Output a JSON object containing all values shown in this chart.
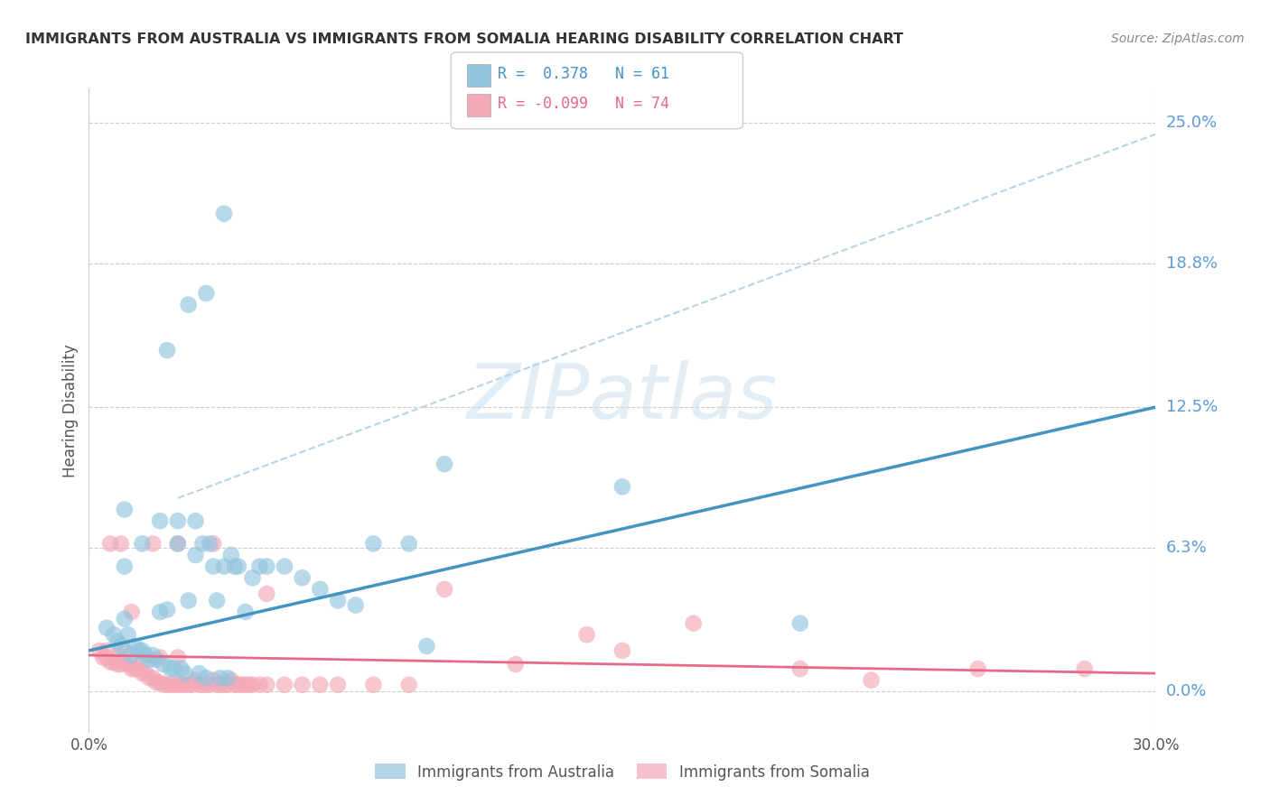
{
  "title": "IMMIGRANTS FROM AUSTRALIA VS IMMIGRANTS FROM SOMALIA HEARING DISABILITY CORRELATION CHART",
  "source": "Source: ZipAtlas.com",
  "ylabel": "Hearing Disability",
  "xlim": [
    0.0,
    0.3
  ],
  "ylim": [
    -0.018,
    0.265
  ],
  "ytick_values": [
    0.0,
    0.063,
    0.125,
    0.188,
    0.25
  ],
  "ytick_labels": [
    "0.0%",
    "6.3%",
    "12.5%",
    "18.8%",
    "25.0%"
  ],
  "xtick_values": [
    0.0,
    0.3
  ],
  "xtick_labels": [
    "0.0%",
    "30.0%"
  ],
  "australia_color": "#92c5de",
  "somalia_color": "#f4a9b8",
  "australia_line_color": "#4393c3",
  "somalia_line_color": "#e8688a",
  "dashed_line_color": "#b8d4e8",
  "R_australia": 0.378,
  "N_australia": 61,
  "R_somalia": -0.099,
  "N_somalia": 74,
  "watermark_text": "ZIPatlas",
  "watermark_color": "#c8dced",
  "aus_x": [
    0.005,
    0.007,
    0.008,
    0.009,
    0.01,
    0.01,
    0.01,
    0.011,
    0.012,
    0.013,
    0.014,
    0.015,
    0.015,
    0.016,
    0.017,
    0.018,
    0.019,
    0.02,
    0.02,
    0.021,
    0.022,
    0.023,
    0.024,
    0.025,
    0.025,
    0.026,
    0.027,
    0.028,
    0.03,
    0.03,
    0.031,
    0.032,
    0.033,
    0.034,
    0.035,
    0.036,
    0.037,
    0.038,
    0.039,
    0.04,
    0.041,
    0.042,
    0.044,
    0.046,
    0.048,
    0.05,
    0.055,
    0.06,
    0.065,
    0.07,
    0.075,
    0.08,
    0.09,
    0.095,
    0.1,
    0.15,
    0.2,
    0.022,
    0.028,
    0.033,
    0.038
  ],
  "aus_y": [
    0.028,
    0.025,
    0.022,
    0.02,
    0.055,
    0.08,
    0.032,
    0.025,
    0.016,
    0.02,
    0.018,
    0.018,
    0.065,
    0.016,
    0.014,
    0.016,
    0.014,
    0.075,
    0.035,
    0.012,
    0.036,
    0.01,
    0.01,
    0.075,
    0.065,
    0.01,
    0.008,
    0.04,
    0.075,
    0.06,
    0.008,
    0.065,
    0.006,
    0.065,
    0.055,
    0.04,
    0.006,
    0.055,
    0.006,
    0.06,
    0.055,
    0.055,
    0.035,
    0.05,
    0.055,
    0.055,
    0.055,
    0.05,
    0.045,
    0.04,
    0.038,
    0.065,
    0.065,
    0.02,
    0.1,
    0.09,
    0.03,
    0.15,
    0.17,
    0.175,
    0.21
  ],
  "som_x": [
    0.003,
    0.004,
    0.005,
    0.005,
    0.006,
    0.007,
    0.008,
    0.008,
    0.009,
    0.01,
    0.01,
    0.011,
    0.012,
    0.013,
    0.014,
    0.015,
    0.015,
    0.016,
    0.017,
    0.018,
    0.019,
    0.02,
    0.02,
    0.021,
    0.022,
    0.023,
    0.024,
    0.025,
    0.025,
    0.026,
    0.027,
    0.028,
    0.029,
    0.03,
    0.031,
    0.032,
    0.033,
    0.034,
    0.035,
    0.036,
    0.037,
    0.038,
    0.039,
    0.04,
    0.041,
    0.042,
    0.043,
    0.044,
    0.045,
    0.046,
    0.048,
    0.05,
    0.055,
    0.06,
    0.065,
    0.07,
    0.08,
    0.09,
    0.1,
    0.12,
    0.14,
    0.15,
    0.17,
    0.2,
    0.22,
    0.25,
    0.28,
    0.006,
    0.009,
    0.012,
    0.018,
    0.025,
    0.035,
    0.05
  ],
  "som_y": [
    0.018,
    0.015,
    0.018,
    0.015,
    0.013,
    0.013,
    0.015,
    0.012,
    0.012,
    0.018,
    0.013,
    0.012,
    0.01,
    0.01,
    0.01,
    0.013,
    0.008,
    0.008,
    0.006,
    0.006,
    0.004,
    0.015,
    0.004,
    0.003,
    0.003,
    0.003,
    0.003,
    0.015,
    0.003,
    0.003,
    0.003,
    0.003,
    0.003,
    0.005,
    0.003,
    0.003,
    0.003,
    0.003,
    0.005,
    0.003,
    0.003,
    0.003,
    0.003,
    0.005,
    0.003,
    0.003,
    0.003,
    0.003,
    0.003,
    0.003,
    0.003,
    0.003,
    0.003,
    0.003,
    0.003,
    0.003,
    0.003,
    0.003,
    0.045,
    0.012,
    0.025,
    0.018,
    0.03,
    0.01,
    0.005,
    0.01,
    0.01,
    0.065,
    0.065,
    0.035,
    0.065,
    0.065,
    0.065,
    0.043
  ]
}
